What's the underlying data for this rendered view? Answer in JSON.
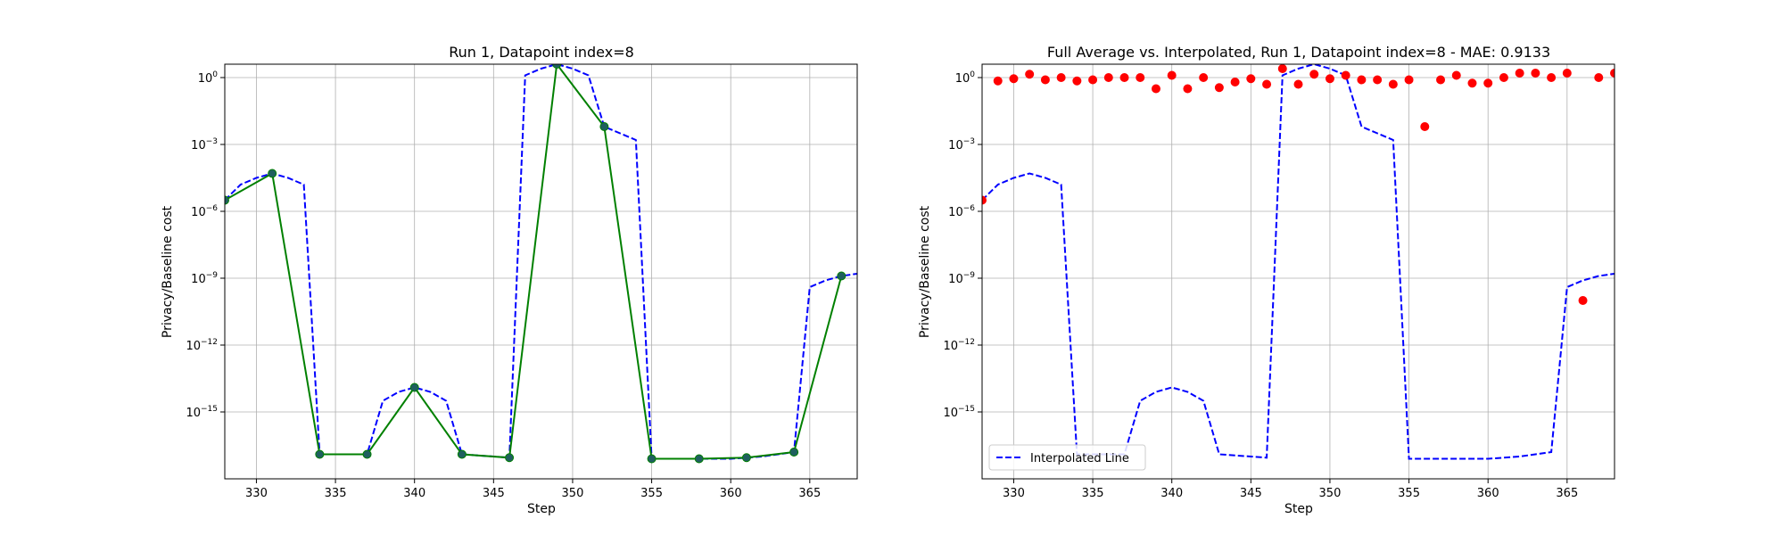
{
  "chart_data": [
    {
      "type": "line",
      "title": "Run 1, Datapoint index=8",
      "xlabel": "Step",
      "ylabel": "Privacy/Baseline cost",
      "xlim": [
        328,
        368
      ],
      "yscale": "log",
      "ylim_exponent": [
        -18,
        0.6
      ],
      "grid": true,
      "x_ticks": [
        330,
        335,
        340,
        345,
        350,
        355,
        360,
        365
      ],
      "y_ticks": [
        {
          "exp": 0,
          "label": "10",
          "sup": "0"
        },
        {
          "exp": -3,
          "label": "10",
          "sup": "−3"
        },
        {
          "exp": -6,
          "label": "10",
          "sup": "−6"
        },
        {
          "exp": -9,
          "label": "10",
          "sup": "−9"
        },
        {
          "exp": -12,
          "label": "10",
          "sup": "−12"
        },
        {
          "exp": -15,
          "label": "10",
          "sup": "−15"
        }
      ],
      "series": [
        {
          "style": "dashed",
          "color": "#0000ff",
          "x": [
            328,
            329,
            330,
            331,
            332,
            333,
            334,
            335,
            336,
            337,
            338,
            339,
            340,
            341,
            342,
            343,
            344,
            345,
            346,
            347,
            348,
            349,
            350,
            351,
            352,
            353,
            354,
            355,
            356,
            357,
            358,
            359,
            360,
            361,
            362,
            363,
            364,
            365,
            366,
            367,
            368
          ],
          "y_exp": [
            -5.5,
            -4.8,
            -4.5,
            -4.3,
            -4.5,
            -4.8,
            -16.9,
            -16.9,
            -16.9,
            -16.9,
            -14.5,
            -14.1,
            -13.9,
            -14.1,
            -14.5,
            -16.9,
            -16.95,
            -17.0,
            -17.05,
            0.1,
            0.4,
            0.6,
            0.4,
            0.1,
            -2.2,
            -2.5,
            -2.8,
            -17.1,
            -17.1,
            -17.1,
            -17.1,
            -17.1,
            -17.1,
            -17.05,
            -17.0,
            -16.9,
            -16.8,
            -9.4,
            -9.1,
            -8.9,
            -8.8
          ]
        },
        {
          "style": "solid-markers",
          "color": "#008000",
          "marker_color": "#1f5f5f",
          "x": [
            328,
            331,
            334,
            337,
            340,
            343,
            346,
            349,
            352,
            355,
            358,
            361,
            364,
            367
          ],
          "y_exp": [
            -5.5,
            -4.3,
            -16.9,
            -16.9,
            -13.9,
            -16.9,
            -17.05,
            0.6,
            -2.2,
            -17.1,
            -17.1,
            -17.05,
            -16.8,
            -8.9
          ]
        }
      ]
    },
    {
      "type": "line",
      "title": "Full Average vs. Interpolated, Run 1, Datapoint index=8 - MAE: 0.9133",
      "xlabel": "Step",
      "ylabel": "Privacy/Baseline cost",
      "xlim": [
        328,
        368
      ],
      "yscale": "log",
      "ylim_exponent": [
        -18,
        0.6
      ],
      "grid": true,
      "legend": "lower-left",
      "x_ticks": [
        330,
        335,
        340,
        345,
        350,
        355,
        360,
        365
      ],
      "y_ticks": [
        {
          "exp": 0,
          "label": "10",
          "sup": "0"
        },
        {
          "exp": -3,
          "label": "10",
          "sup": "−3"
        },
        {
          "exp": -6,
          "label": "10",
          "sup": "−6"
        },
        {
          "exp": -9,
          "label": "10",
          "sup": "−9"
        },
        {
          "exp": -12,
          "label": "10",
          "sup": "−12"
        },
        {
          "exp": -15,
          "label": "10",
          "sup": "−15"
        }
      ],
      "series": [
        {
          "name": "Interpolated Line",
          "style": "dashed",
          "color": "#0000ff",
          "x": [
            328,
            329,
            330,
            331,
            332,
            333,
            334,
            335,
            336,
            337,
            338,
            339,
            340,
            341,
            342,
            343,
            344,
            345,
            346,
            347,
            348,
            349,
            350,
            351,
            352,
            353,
            354,
            355,
            356,
            357,
            358,
            359,
            360,
            361,
            362,
            363,
            364,
            365,
            366,
            367,
            368
          ],
          "y_exp": [
            -5.5,
            -4.8,
            -4.5,
            -4.3,
            -4.5,
            -4.8,
            -16.9,
            -16.9,
            -16.9,
            -16.9,
            -14.5,
            -14.1,
            -13.9,
            -14.1,
            -14.5,
            -16.9,
            -16.95,
            -17.0,
            -17.05,
            0.1,
            0.4,
            0.6,
            0.4,
            0.1,
            -2.2,
            -2.5,
            -2.8,
            -17.1,
            -17.1,
            -17.1,
            -17.1,
            -17.1,
            -17.1,
            -17.05,
            -17.0,
            -16.9,
            -16.8,
            -9.4,
            -9.1,
            -8.9,
            -8.8
          ]
        },
        {
          "style": "scatter",
          "color": "#ff0000",
          "x": [
            328,
            329,
            330,
            331,
            332,
            333,
            334,
            335,
            336,
            337,
            338,
            339,
            340,
            341,
            342,
            343,
            344,
            345,
            346,
            347,
            348,
            349,
            350,
            351,
            352,
            353,
            354,
            355,
            356,
            357,
            358,
            359,
            360,
            361,
            362,
            363,
            364,
            365,
            366,
            367,
            368
          ],
          "y_exp": [
            -5.5,
            -0.15,
            -0.05,
            0.15,
            -0.1,
            0.0,
            -0.15,
            -0.1,
            0.0,
            0.0,
            0.0,
            -0.5,
            0.1,
            -0.5,
            0.0,
            -0.45,
            -0.2,
            -0.05,
            -0.3,
            0.4,
            -0.3,
            0.15,
            -0.05,
            0.1,
            -0.1,
            -0.1,
            -0.3,
            -0.1,
            -2.2,
            -0.1,
            0.1,
            -0.25,
            -0.25,
            0.0,
            0.2,
            0.2,
            0.0,
            0.2,
            -10.0,
            0.0,
            0.2
          ]
        }
      ]
    }
  ]
}
